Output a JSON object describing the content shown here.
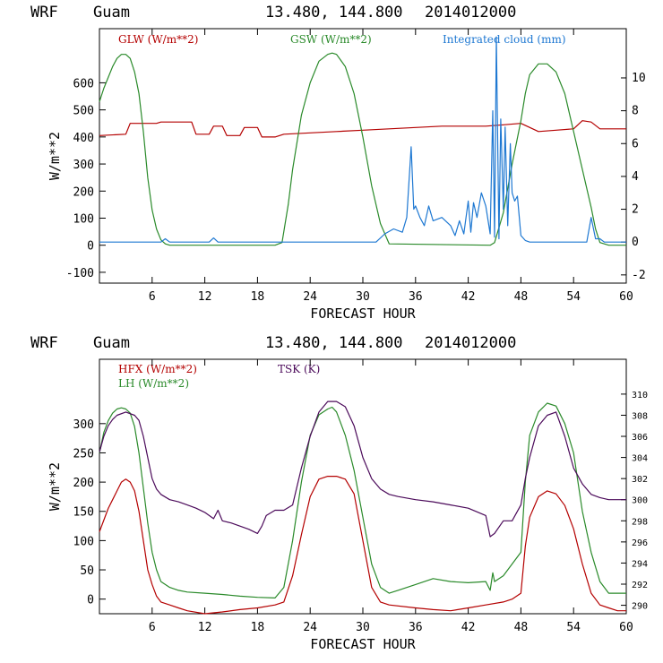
{
  "panels": [
    {
      "header": {
        "model": "WRF",
        "location": "Guam",
        "coords": "13.480, 144.800",
        "init": "2014012000"
      },
      "legend": [
        {
          "label": "GLW (W/m**2)",
          "color": "#b40000"
        },
        {
          "label": "GSW (W/m**2)",
          "color": "#2a8a2a"
        },
        {
          "label": "Integrated cloud (mm)",
          "color": "#1e78d2"
        }
      ]
    },
    {
      "header": {
        "model": "WRF",
        "location": "Guam",
        "coords": "13.480, 144.800",
        "init": "2014012000"
      },
      "legend": [
        {
          "label": "HFX (W/m**2)",
          "color": "#b40000"
        },
        {
          "label": "LH  (W/m**2)",
          "color": "#2a8a2a"
        },
        {
          "label": "TSK (K)",
          "color": "#4b0a5a"
        }
      ]
    }
  ],
  "chart_data": [
    {
      "type": "line",
      "xlabel": "FORECAST HOUR",
      "ylabel": "W/m**2",
      "xlim": [
        0,
        60
      ],
      "ylim": [
        -140,
        800
      ],
      "y2lim": [
        -2.5,
        13
      ],
      "xticks": [
        6,
        12,
        18,
        24,
        30,
        36,
        42,
        48,
        54,
        60
      ],
      "yticks": [
        -100,
        0,
        100,
        200,
        300,
        400,
        500,
        600
      ],
      "y2ticks": [
        -2,
        0,
        2,
        4,
        6,
        8,
        10
      ],
      "series": [
        {
          "name": "GLW (W/m**2)",
          "axis": "left",
          "color": "#b40000",
          "x": [
            0,
            3,
            3.5,
            6.5,
            7,
            10.5,
            11,
            12.5,
            13,
            14,
            14.5,
            16,
            16.5,
            18,
            18.5,
            20,
            21,
            24,
            27,
            30,
            33,
            36,
            39,
            42,
            44,
            46,
            48,
            50,
            52,
            54,
            55,
            56,
            57,
            60
          ],
          "y": [
            405,
            410,
            450,
            450,
            455,
            455,
            410,
            410,
            440,
            440,
            405,
            405,
            435,
            435,
            400,
            400,
            410,
            415,
            420,
            425,
            430,
            435,
            440,
            440,
            440,
            445,
            450,
            420,
            425,
            430,
            460,
            455,
            430,
            430
          ]
        },
        {
          "name": "GSW (W/m**2)",
          "axis": "left",
          "color": "#2a8a2a",
          "x": [
            0,
            0.5,
            1,
            1.5,
            2,
            2.5,
            3,
            3.5,
            4,
            4.5,
            5,
            5.5,
            6,
            6.5,
            7,
            7.5,
            8,
            9,
            10,
            20,
            20.8,
            21.5,
            22,
            23,
            24,
            25,
            26,
            26.5,
            27,
            28,
            29,
            30,
            31,
            32,
            33,
            44.5,
            45,
            46,
            47,
            48,
            48.5,
            49,
            50,
            51,
            52,
            53,
            54,
            55,
            56,
            56.5,
            57,
            58,
            60
          ],
          "y": [
            530,
            580,
            620,
            660,
            690,
            705,
            705,
            690,
            640,
            560,
            420,
            250,
            130,
            60,
            20,
            5,
            0,
            0,
            0,
            0,
            10,
            150,
            280,
            480,
            600,
            680,
            705,
            710,
            705,
            660,
            560,
            400,
            220,
            80,
            5,
            0,
            10,
            120,
            300,
            460,
            560,
            630,
            670,
            670,
            640,
            560,
            420,
            280,
            140,
            60,
            10,
            0,
            0
          ]
        },
        {
          "name": "Integrated cloud (mm)",
          "axis": "right",
          "color": "#1e78d2",
          "x": [
            0,
            7,
            7.5,
            8,
            12.5,
            13,
            13.5,
            31.5,
            32.5,
            33.5,
            34.5,
            35,
            35.5,
            35.8,
            36,
            36.5,
            37,
            37.5,
            38,
            39,
            40,
            40.5,
            41,
            41.5,
            42,
            42.3,
            42.6,
            43,
            43.5,
            44,
            44.5,
            44.8,
            45,
            45.2,
            45.5,
            45.7,
            46,
            46.2,
            46.5,
            46.8,
            47,
            47.3,
            47.6,
            48,
            48.5,
            49,
            50,
            55.5,
            56,
            56.5,
            57,
            57.5,
            58,
            60
          ],
          "y": [
            0,
            0,
            0.2,
            0,
            0,
            0.25,
            0,
            0,
            0.5,
            0.8,
            0.6,
            1.5,
            5.8,
            2,
            2.2,
            1.5,
            1,
            2.2,
            1.3,
            1.5,
            1,
            0.4,
            1.3,
            0.5,
            2.5,
            0.6,
            2.4,
            1.5,
            3,
            2.2,
            0.5,
            8,
            0.3,
            12.5,
            0.2,
            7.5,
            2,
            7,
            1,
            6,
            3,
            2.5,
            2.8,
            0.4,
            0.1,
            0,
            0,
            0,
            1.5,
            0.2,
            0.2,
            0,
            0,
            0
          ]
        }
      ]
    },
    {
      "type": "line",
      "xlabel": "FORECAST HOUR",
      "ylabel": "W/m**2",
      "xlim": [
        0,
        60
      ],
      "ylim": [
        -25,
        410
      ],
      "y2lim": [
        289.2,
        313.3
      ],
      "xticks": [
        6,
        12,
        18,
        24,
        30,
        36,
        42,
        48,
        54,
        60
      ],
      "yticks": [
        0,
        50,
        100,
        150,
        200,
        250,
        300
      ],
      "y2ticks": [
        290,
        292,
        294,
        296,
        298,
        300,
        302,
        304,
        306,
        308,
        310
      ],
      "series": [
        {
          "name": "HFX (W/m**2)",
          "axis": "left",
          "color": "#b40000",
          "x": [
            0,
            0.5,
            1,
            1.5,
            2,
            2.5,
            3,
            3.5,
            4,
            4.5,
            5,
            5.5,
            6,
            6.5,
            7,
            8,
            9,
            10,
            12,
            14,
            16,
            18,
            20,
            21,
            22,
            23,
            24,
            25,
            26,
            27,
            28,
            29,
            30,
            31,
            32,
            33,
            36,
            38,
            40,
            42,
            44,
            46,
            47,
            48,
            48.5,
            49,
            50,
            51,
            52,
            53,
            54,
            55,
            56,
            57,
            58,
            59,
            60
          ],
          "y": [
            115,
            135,
            155,
            170,
            185,
            200,
            205,
            200,
            185,
            150,
            100,
            50,
            25,
            5,
            -5,
            -10,
            -15,
            -20,
            -25,
            -22,
            -18,
            -15,
            -10,
            -5,
            40,
            110,
            175,
            205,
            210,
            210,
            205,
            180,
            100,
            20,
            -5,
            -10,
            -15,
            -18,
            -20,
            -15,
            -10,
            -5,
            0,
            10,
            90,
            140,
            175,
            185,
            180,
            160,
            120,
            60,
            10,
            -10,
            -15,
            -20,
            -20
          ]
        },
        {
          "name": "LH  (W/m**2)",
          "axis": "left",
          "color": "#2a8a2a",
          "x": [
            0,
            0.5,
            1,
            1.5,
            2,
            2.5,
            3,
            3.5,
            4,
            4.5,
            5,
            5.5,
            6,
            6.5,
            7,
            8,
            9,
            10,
            12,
            14,
            16,
            18,
            20,
            21,
            22,
            23,
            24,
            25,
            26,
            26.5,
            27,
            28,
            29,
            30,
            31,
            32,
            33,
            34,
            36,
            38,
            40,
            42,
            44,
            44.5,
            44.8,
            45,
            46,
            47,
            48,
            48.5,
            49,
            50,
            51,
            52,
            53,
            54,
            55,
            56,
            57,
            58,
            60
          ],
          "y": [
            250,
            285,
            305,
            318,
            325,
            327,
            325,
            318,
            295,
            250,
            190,
            130,
            80,
            50,
            30,
            20,
            15,
            12,
            10,
            8,
            5,
            3,
            2,
            20,
            100,
            200,
            280,
            315,
            325,
            328,
            320,
            280,
            220,
            140,
            60,
            20,
            10,
            15,
            25,
            35,
            30,
            28,
            30,
            15,
            45,
            30,
            40,
            60,
            80,
            200,
            280,
            320,
            335,
            330,
            300,
            250,
            150,
            80,
            30,
            10,
            10
          ]
        },
        {
          "name": "TSK (K)",
          "axis": "right",
          "color": "#4b0a5a",
          "x": [
            0,
            0.5,
            1,
            1.5,
            2,
            3,
            4,
            4.5,
            5,
            5.5,
            6,
            6.5,
            7,
            8,
            9,
            10,
            11,
            12,
            12.5,
            13,
            13.5,
            14,
            15,
            16,
            17,
            18,
            18.5,
            19,
            20,
            21,
            22,
            23,
            24,
            25,
            26,
            27,
            28,
            29,
            30,
            31,
            32,
            33,
            34,
            36,
            38,
            40,
            42,
            44,
            44.5,
            45,
            46,
            47,
            48,
            48.5,
            49,
            50,
            51,
            52,
            53,
            54,
            55,
            56,
            57,
            58,
            59,
            60
          ],
          "y": [
            304.5,
            306,
            307,
            307.6,
            308,
            308.3,
            308,
            307.5,
            306,
            304,
            302,
            301,
            300.5,
            300,
            299.8,
            299.5,
            299.2,
            298.8,
            298.5,
            298.2,
            299,
            298,
            297.8,
            297.5,
            297.2,
            296.8,
            297.5,
            298.5,
            299,
            299,
            299.5,
            303,
            306,
            308.3,
            309.3,
            309.3,
            308.8,
            307,
            304,
            302,
            301,
            300.5,
            300.3,
            300,
            299.8,
            299.5,
            299.2,
            298.5,
            296.5,
            296.8,
            298,
            298,
            299.5,
            302,
            304,
            307,
            308,
            308.3,
            306,
            303,
            301.5,
            300.5,
            300.2,
            300,
            300,
            300
          ]
        }
      ]
    }
  ]
}
